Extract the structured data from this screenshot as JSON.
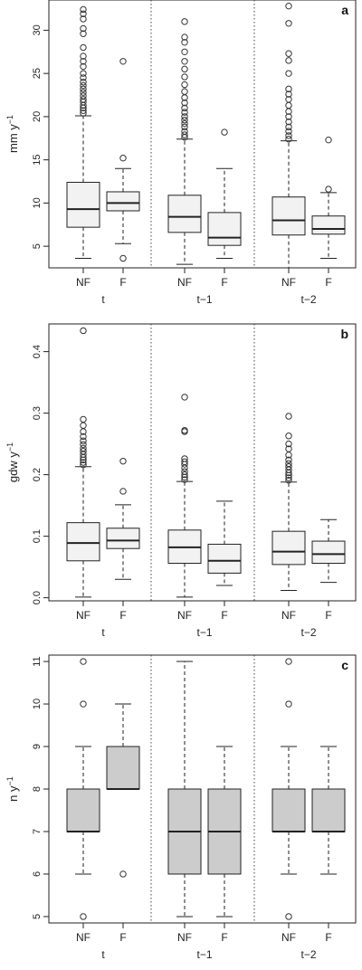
{
  "chart_data": [
    {
      "type": "box",
      "panel_label": "a",
      "ylabel": "mm y",
      "ylabel_sup": "−1",
      "ylim": [
        2.5,
        33.5
      ],
      "yticks": [
        5,
        10,
        15,
        20,
        25,
        30
      ],
      "box_fill": "#f2f2f2",
      "groups": [
        "t",
        "t−1",
        "t−2"
      ],
      "categories": [
        "NF",
        "F"
      ],
      "boxes": [
        {
          "group": "t",
          "category": "NF",
          "whisker_low": 3.6,
          "q1": 7.2,
          "median": 9.3,
          "q3": 12.4,
          "whisker_high": 20.1,
          "outliers": [
            20.4,
            20.7,
            21.0,
            21.3,
            21.7,
            22.0,
            22.4,
            22.8,
            23.2,
            23.6,
            24.0,
            24.5,
            25.0,
            25.8,
            26.4,
            27.0,
            28.0,
            29.6,
            30.2,
            31.3,
            31.9,
            32.4
          ]
        },
        {
          "group": "t",
          "category": "F",
          "whisker_low": 5.3,
          "q1": 9.1,
          "median": 10.0,
          "q3": 11.3,
          "whisker_high": 14.0,
          "outliers": [
            3.6,
            15.2,
            26.4
          ]
        },
        {
          "group": "t−1",
          "category": "NF",
          "whisker_low": 2.9,
          "q1": 6.6,
          "median": 8.4,
          "q3": 10.9,
          "whisker_high": 17.4,
          "outliers": [
            17.6,
            17.9,
            18.3,
            18.8,
            19.2,
            19.6,
            20.0,
            20.5,
            21.0,
            21.6,
            22.2,
            22.9,
            23.7,
            24.6,
            25.5,
            26.4,
            27.5,
            28.6,
            29.2,
            31.0
          ]
        },
        {
          "group": "t−1",
          "category": "F",
          "whisker_low": 3.6,
          "q1": 5.1,
          "median": 6.0,
          "q3": 8.9,
          "whisker_high": 14.0,
          "outliers": [
            18.2
          ]
        },
        {
          "group": "t−2",
          "category": "NF",
          "whisker_low": 2.5,
          "q1": 6.3,
          "median": 8.0,
          "q3": 10.7,
          "whisker_high": 17.2,
          "outliers": [
            17.4,
            17.8,
            18.3,
            18.8,
            19.4,
            20.0,
            20.6,
            21.3,
            22.0,
            22.6,
            23.2,
            25.0,
            26.5,
            27.3,
            30.8,
            32.8
          ]
        },
        {
          "group": "t−2",
          "category": "F",
          "whisker_low": 3.6,
          "q1": 6.4,
          "median": 7.0,
          "q3": 8.5,
          "whisker_high": 11.2,
          "outliers": [
            11.6,
            17.3
          ]
        }
      ]
    },
    {
      "type": "box",
      "panel_label": "b",
      "ylabel": "gdw y",
      "ylabel_sup": "−1",
      "ylim": [
        -0.005,
        0.445
      ],
      "yticks": [
        0.0,
        0.1,
        0.2,
        0.3,
        0.4
      ],
      "ytick_labels": [
        "0.0",
        "0.1",
        "0.2",
        "0.3",
        "0.4"
      ],
      "box_fill": "#f2f2f2",
      "groups": [
        "t",
        "t−1",
        "t−2"
      ],
      "categories": [
        "NF",
        "F"
      ],
      "boxes": [
        {
          "group": "t",
          "category": "NF",
          "whisker_low": 0.001,
          "q1": 0.06,
          "median": 0.089,
          "q3": 0.122,
          "whisker_high": 0.213,
          "outliers": [
            0.216,
            0.22,
            0.224,
            0.228,
            0.233,
            0.238,
            0.243,
            0.249,
            0.255,
            0.262,
            0.27,
            0.28,
            0.29,
            0.434
          ]
        },
        {
          "group": "t",
          "category": "F",
          "whisker_low": 0.03,
          "q1": 0.08,
          "median": 0.093,
          "q3": 0.113,
          "whisker_high": 0.151,
          "outliers": [
            0.173,
            0.222
          ]
        },
        {
          "group": "t−1",
          "category": "NF",
          "whisker_low": 0.001,
          "q1": 0.056,
          "median": 0.082,
          "q3": 0.11,
          "whisker_high": 0.189,
          "outliers": [
            0.192,
            0.196,
            0.2,
            0.205,
            0.211,
            0.217,
            0.221,
            0.226,
            0.27,
            0.272,
            0.326
          ]
        },
        {
          "group": "t−1",
          "category": "F",
          "whisker_low": 0.02,
          "q1": 0.04,
          "median": 0.06,
          "q3": 0.087,
          "whisker_high": 0.157,
          "outliers": []
        },
        {
          "group": "t−2",
          "category": "NF",
          "whisker_low": 0.012,
          "q1": 0.054,
          "median": 0.075,
          "q3": 0.108,
          "whisker_high": 0.188,
          "outliers": [
            0.191,
            0.195,
            0.199,
            0.203,
            0.208,
            0.213,
            0.218,
            0.224,
            0.232,
            0.242,
            0.25,
            0.263,
            0.295
          ]
        },
        {
          "group": "t−2",
          "category": "F",
          "whisker_low": 0.025,
          "q1": 0.056,
          "median": 0.071,
          "q3": 0.092,
          "whisker_high": 0.127,
          "outliers": []
        }
      ]
    },
    {
      "type": "box",
      "panel_label": "c",
      "ylabel": "n y",
      "ylabel_sup": "−1",
      "ylim": [
        4.85,
        11.15
      ],
      "yticks": [
        5,
        6,
        7,
        8,
        9,
        10,
        11
      ],
      "box_fill": "#cccccc",
      "groups": [
        "t",
        "t−1",
        "t−2"
      ],
      "categories": [
        "NF",
        "F"
      ],
      "boxes": [
        {
          "group": "t",
          "category": "NF",
          "whisker_low": 6,
          "q1": 7,
          "median": 7,
          "q3": 8,
          "whisker_high": 9,
          "outliers": [
            5,
            10,
            11
          ]
        },
        {
          "group": "t",
          "category": "F",
          "whisker_low": 8,
          "q1": 8,
          "median": 8,
          "q3": 9,
          "whisker_high": 10,
          "outliers": [
            6
          ]
        },
        {
          "group": "t−1",
          "category": "NF",
          "whisker_low": 5,
          "q1": 6,
          "median": 7,
          "q3": 8,
          "whisker_high": 11,
          "outliers": []
        },
        {
          "group": "t−1",
          "category": "F",
          "whisker_low": 5,
          "q1": 6,
          "median": 7,
          "q3": 8,
          "whisker_high": 9,
          "outliers": []
        },
        {
          "group": "t−2",
          "category": "NF",
          "whisker_low": 6,
          "q1": 7,
          "median": 7,
          "q3": 8,
          "whisker_high": 9,
          "outliers": [
            5,
            10,
            11
          ]
        },
        {
          "group": "t−2",
          "category": "F",
          "whisker_low": 6,
          "q1": 7,
          "median": 7,
          "q3": 8,
          "whisker_high": 9,
          "outliers": []
        }
      ]
    }
  ]
}
